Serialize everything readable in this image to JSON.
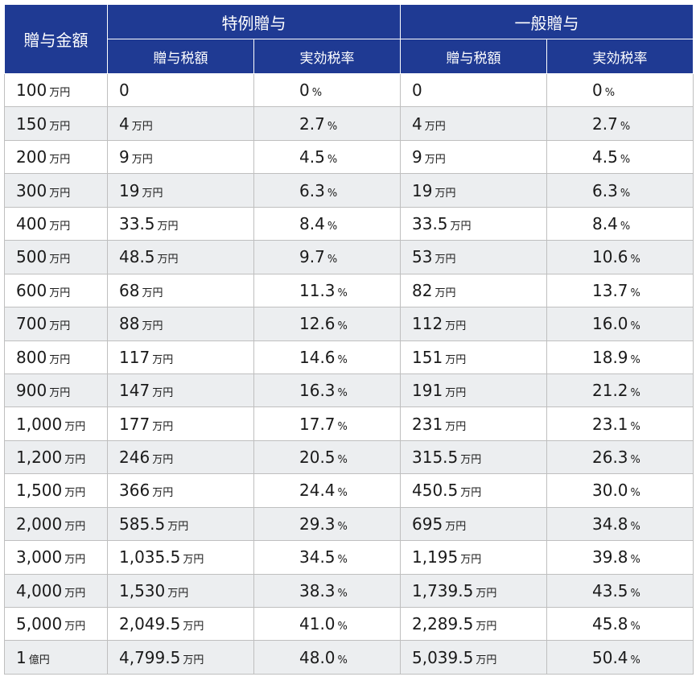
{
  "header": {
    "amount_label": "贈与金額",
    "special_label": "特例贈与",
    "general_label": "一般贈与",
    "tax_label": "贈与税額",
    "rate_label": "実効税率"
  },
  "rows": [
    {
      "amount": "100",
      "amount_unit": "万円",
      "sp_tax": "0",
      "sp_tax_unit": "",
      "sp_rate": "0",
      "sp_rate_unit": "%",
      "gen_tax": "0",
      "gen_tax_unit": "",
      "gen_rate": "0",
      "gen_rate_unit": "%"
    },
    {
      "amount": "150",
      "amount_unit": "万円",
      "sp_tax": "4",
      "sp_tax_unit": "万円",
      "sp_rate": "2.7",
      "sp_rate_unit": "%",
      "gen_tax": "4",
      "gen_tax_unit": "万円",
      "gen_rate": "2.7",
      "gen_rate_unit": "%"
    },
    {
      "amount": "200",
      "amount_unit": "万円",
      "sp_tax": "9",
      "sp_tax_unit": "万円",
      "sp_rate": "4.5",
      "sp_rate_unit": "%",
      "gen_tax": "9",
      "gen_tax_unit": "万円",
      "gen_rate": "4.5",
      "gen_rate_unit": "%"
    },
    {
      "amount": "300",
      "amount_unit": "万円",
      "sp_tax": "19",
      "sp_tax_unit": "万円",
      "sp_rate": "6.3",
      "sp_rate_unit": "%",
      "gen_tax": "19",
      "gen_tax_unit": "万円",
      "gen_rate": "6.3",
      "gen_rate_unit": "%"
    },
    {
      "amount": "400",
      "amount_unit": "万円",
      "sp_tax": "33.5",
      "sp_tax_unit": "万円",
      "sp_rate": "8.4",
      "sp_rate_unit": "%",
      "gen_tax": "33.5",
      "gen_tax_unit": "万円",
      "gen_rate": "8.4",
      "gen_rate_unit": "%"
    },
    {
      "amount": "500",
      "amount_unit": "万円",
      "sp_tax": "48.5",
      "sp_tax_unit": "万円",
      "sp_rate": "9.7",
      "sp_rate_unit": "%",
      "gen_tax": "53",
      "gen_tax_unit": "万円",
      "gen_rate": "10.6",
      "gen_rate_unit": "%"
    },
    {
      "amount": "600",
      "amount_unit": "万円",
      "sp_tax": "68",
      "sp_tax_unit": "万円",
      "sp_rate": "11.3",
      "sp_rate_unit": "%",
      "gen_tax": "82",
      "gen_tax_unit": "万円",
      "gen_rate": "13.7",
      "gen_rate_unit": "%"
    },
    {
      "amount": "700",
      "amount_unit": "万円",
      "sp_tax": "88",
      "sp_tax_unit": "万円",
      "sp_rate": "12.6",
      "sp_rate_unit": "%",
      "gen_tax": "112",
      "gen_tax_unit": "万円",
      "gen_rate": "16.0",
      "gen_rate_unit": "%"
    },
    {
      "amount": "800",
      "amount_unit": "万円",
      "sp_tax": "117",
      "sp_tax_unit": "万円",
      "sp_rate": "14.6",
      "sp_rate_unit": "%",
      "gen_tax": "151",
      "gen_tax_unit": "万円",
      "gen_rate": "18.9",
      "gen_rate_unit": "%"
    },
    {
      "amount": "900",
      "amount_unit": "万円",
      "sp_tax": "147",
      "sp_tax_unit": "万円",
      "sp_rate": "16.3",
      "sp_rate_unit": "%",
      "gen_tax": "191",
      "gen_tax_unit": "万円",
      "gen_rate": "21.2",
      "gen_rate_unit": "%"
    },
    {
      "amount": "1,000",
      "amount_unit": "万円",
      "sp_tax": "177",
      "sp_tax_unit": "万円",
      "sp_rate": "17.7",
      "sp_rate_unit": "%",
      "gen_tax": "231",
      "gen_tax_unit": "万円",
      "gen_rate": "23.1",
      "gen_rate_unit": "%"
    },
    {
      "amount": "1,200",
      "amount_unit": "万円",
      "sp_tax": "246",
      "sp_tax_unit": "万円",
      "sp_rate": "20.5",
      "sp_rate_unit": "%",
      "gen_tax": "315.5",
      "gen_tax_unit": "万円",
      "gen_rate": "26.3",
      "gen_rate_unit": "%"
    },
    {
      "amount": "1,500",
      "amount_unit": "万円",
      "sp_tax": "366",
      "sp_tax_unit": "万円",
      "sp_rate": "24.4",
      "sp_rate_unit": "%",
      "gen_tax": "450.5",
      "gen_tax_unit": "万円",
      "gen_rate": "30.0",
      "gen_rate_unit": "%"
    },
    {
      "amount": "2,000",
      "amount_unit": "万円",
      "sp_tax": "585.5",
      "sp_tax_unit": "万円",
      "sp_rate": "29.3",
      "sp_rate_unit": "%",
      "gen_tax": "695",
      "gen_tax_unit": "万円",
      "gen_rate": "34.8",
      "gen_rate_unit": "%"
    },
    {
      "amount": "3,000",
      "amount_unit": "万円",
      "sp_tax": "1,035.5",
      "sp_tax_unit": "万円",
      "sp_rate": "34.5",
      "sp_rate_unit": "%",
      "gen_tax": "1,195",
      "gen_tax_unit": "万円",
      "gen_rate": "39.8",
      "gen_rate_unit": "%"
    },
    {
      "amount": "4,000",
      "amount_unit": "万円",
      "sp_tax": "1,530",
      "sp_tax_unit": "万円",
      "sp_rate": "38.3",
      "sp_rate_unit": "%",
      "gen_tax": "1,739.5",
      "gen_tax_unit": "万円",
      "gen_rate": "43.5",
      "gen_rate_unit": "%"
    },
    {
      "amount": "5,000",
      "amount_unit": "万円",
      "sp_tax": "2,049.5",
      "sp_tax_unit": "万円",
      "sp_rate": "41.0",
      "sp_rate_unit": "%",
      "gen_tax": "2,289.5",
      "gen_tax_unit": "万円",
      "gen_rate": "45.8",
      "gen_rate_unit": "%"
    },
    {
      "amount": "1",
      "amount_unit": "億円",
      "sp_tax": "4,799.5",
      "sp_tax_unit": "万円",
      "sp_rate": "48.0",
      "sp_rate_unit": "%",
      "gen_tax": "5,039.5",
      "gen_tax_unit": "万円",
      "gen_rate": "50.4",
      "gen_rate_unit": "%"
    }
  ],
  "colors": {
    "header_bg": "#1f3a93",
    "header_text": "#ffffff",
    "stripe_bg": "#eceef0",
    "border": "#bfbfbf"
  }
}
